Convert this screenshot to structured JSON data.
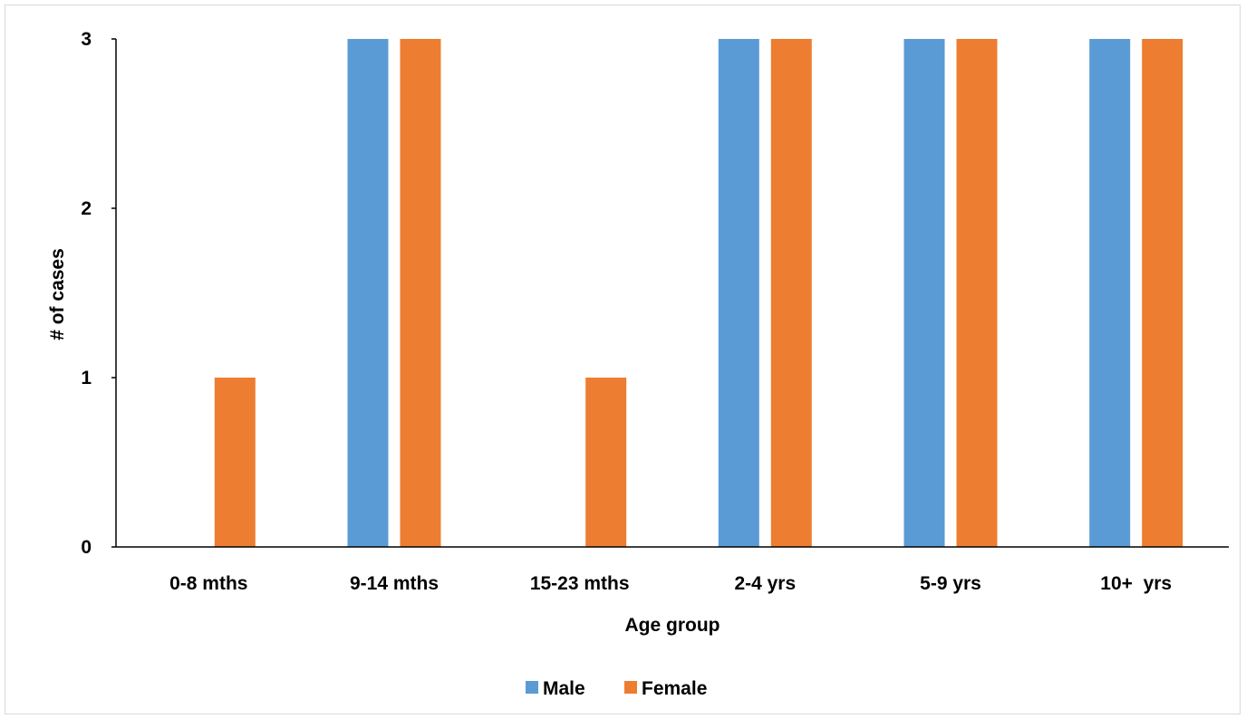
{
  "chart_data": {
    "type": "bar",
    "title": "",
    "xlabel": "Age group",
    "ylabel": "# of cases",
    "categories": [
      "0-8 mths",
      "9-14 mths",
      "15-23 mths",
      "2-4 yrs",
      "5-9 yrs",
      "10+  yrs"
    ],
    "series": [
      {
        "name": "Male",
        "color": "#5b9bd5",
        "values": [
          0,
          3,
          0,
          3,
          3,
          3
        ]
      },
      {
        "name": "Female",
        "color": "#ed7d31",
        "values": [
          1,
          3,
          1,
          3,
          3,
          3
        ]
      }
    ],
    "ylim": [
      0,
      3
    ],
    "yticks": [
      "0",
      "1",
      "2",
      "3"
    ],
    "grid": false,
    "legend_position": "bottom"
  }
}
